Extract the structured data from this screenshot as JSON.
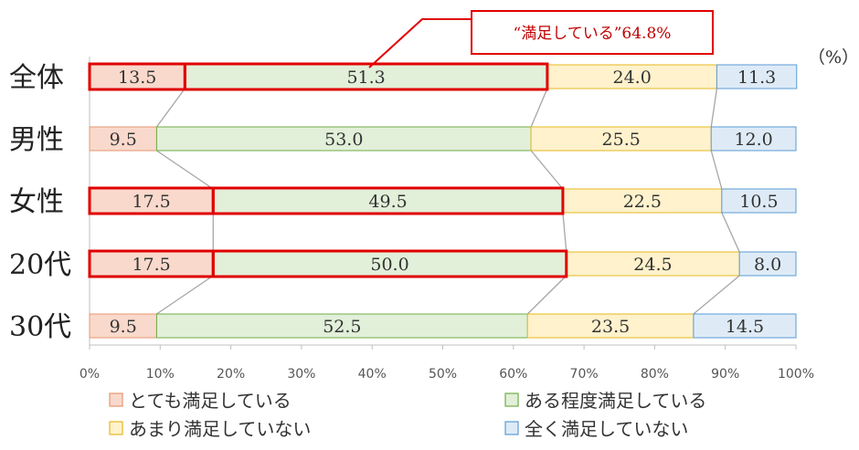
{
  "chart_data": {
    "type": "bar",
    "stacked": true,
    "horizontal": true,
    "normalized": true,
    "unit": "（%）",
    "categories": [
      "全体",
      "男性",
      "女性",
      "20代",
      "30代"
    ],
    "series": [
      {
        "name": "とても満足している",
        "color": "#f9d9cc",
        "border": "#e8956f",
        "values": [
          13.5,
          9.5,
          17.5,
          17.5,
          9.5
        ]
      },
      {
        "name": "ある程度満足している",
        "color": "#e2efd9",
        "border": "#70ad47",
        "values": [
          51.3,
          53.0,
          49.5,
          50.0,
          52.5
        ]
      },
      {
        "name": "あまり満足していない",
        "color": "#fff2cc",
        "border": "#e6b820",
        "values": [
          24.0,
          25.5,
          22.5,
          24.5,
          23.5
        ]
      },
      {
        "name": "全く満足していない",
        "color": "#deebf7",
        "border": "#5b9bd5",
        "values": [
          11.3,
          12.0,
          10.5,
          8.0,
          14.5
        ]
      }
    ],
    "value_labels": [
      [
        "13.5",
        "51.3",
        "24.0",
        "11.3"
      ],
      [
        "9.5",
        "53.0",
        "25.5",
        "12.0"
      ],
      [
        "17.5",
        "49.5",
        "22.5",
        "10.5"
      ],
      [
        "17.5",
        "50.0",
        "24.5",
        "8.0"
      ],
      [
        "9.5",
        "52.5",
        "23.5",
        "14.5"
      ]
    ],
    "x_ticks": [
      "0%",
      "10%",
      "20%",
      "30%",
      "40%",
      "50%",
      "60%",
      "70%",
      "80%",
      "90%",
      "100%"
    ],
    "xlim": [
      0,
      100
    ],
    "highlight_rows": [
      0,
      2,
      3
    ],
    "highlight_color": "#e00000",
    "callout": "“満足している”64.8%",
    "connector_lines": true,
    "legend_position": "bottom"
  }
}
